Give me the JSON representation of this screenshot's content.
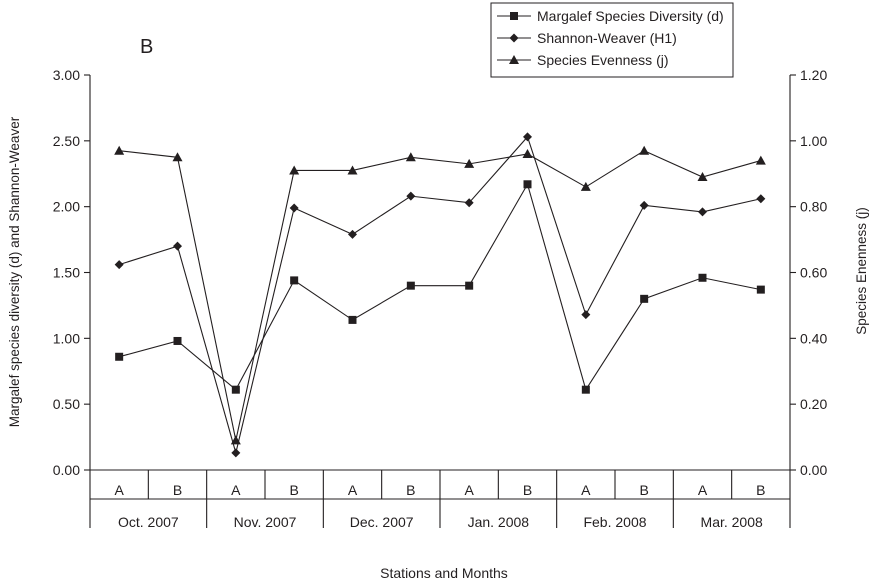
{
  "chart_data": {
    "type": "line",
    "panel_label": "B",
    "xlabel": "Stations and Months",
    "ylabel_left": "Margalef species diversity (d) and Shannon-Weaver",
    "ylabel_right": "Species Enenness (j)",
    "ylim_left": [
      0,
      3
    ],
    "ylim_right": [
      0,
      1.2
    ],
    "yticks_left": [
      "0.00",
      "0.50",
      "1.00",
      "1.50",
      "2.00",
      "2.50",
      "3.00"
    ],
    "yticks_right": [
      "0.00",
      "0.20",
      "0.40",
      "0.60",
      "0.80",
      "1.00",
      "1.20"
    ],
    "categories": [
      "A",
      "B",
      "A",
      "B",
      "A",
      "B",
      "A",
      "B",
      "A",
      "B",
      "A",
      "B"
    ],
    "groups": [
      "Oct. 2007",
      "Nov. 2007",
      "Dec. 2007",
      "Jan. 2008",
      "Feb. 2008",
      "Mar. 2008"
    ],
    "grid": false,
    "legend_position": "top-right",
    "series": [
      {
        "name": "Margalef Species Diversity (d)",
        "marker": "square",
        "axis": "left",
        "values": [
          0.86,
          0.98,
          0.61,
          1.44,
          1.14,
          1.4,
          1.4,
          2.17,
          0.61,
          1.3,
          1.46,
          1.37
        ]
      },
      {
        "name": "Shannon-Weaver (H1)",
        "marker": "diamond",
        "axis": "left",
        "values": [
          1.56,
          1.7,
          0.13,
          1.99,
          1.79,
          2.08,
          2.03,
          2.53,
          1.18,
          2.01,
          1.96,
          2.06
        ]
      },
      {
        "name": "Species Evenness (j)",
        "marker": "triangle",
        "axis": "right",
        "values": [
          0.97,
          0.95,
          0.09,
          0.91,
          0.91,
          0.95,
          0.93,
          0.96,
          0.86,
          0.97,
          0.89,
          0.94
        ]
      }
    ]
  }
}
